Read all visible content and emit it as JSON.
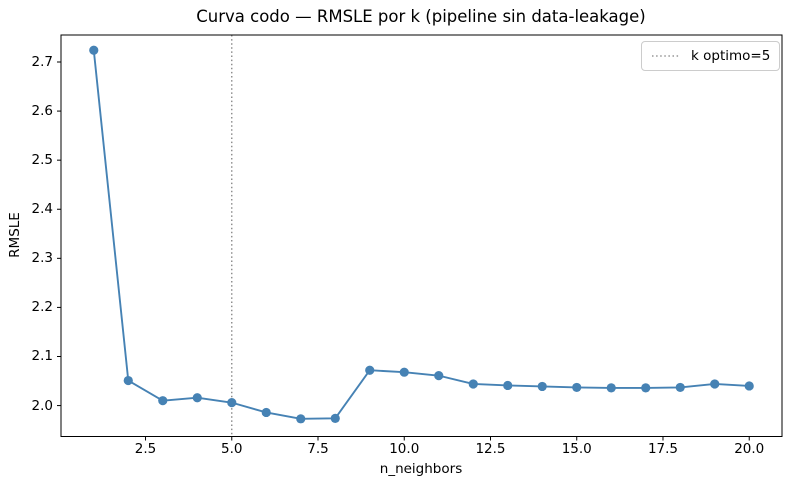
{
  "figure": {
    "background": "#ffffff"
  },
  "chart_data": {
    "type": "line",
    "title": "Curva codo — RMSLE por k (pipeline sin data-leakage)",
    "xlabel": "n_neighbors",
    "ylabel": "RMSLE",
    "x": [
      1,
      2,
      3,
      4,
      5,
      6,
      7,
      8,
      9,
      10,
      11,
      12,
      13,
      14,
      15,
      16,
      17,
      18,
      19,
      20
    ],
    "series": [
      {
        "name": "RMSLE",
        "color": "#4682b4",
        "marker": "o",
        "values": [
          2.724,
          2.051,
          2.01,
          2.016,
          2.006,
          1.986,
          1.973,
          1.974,
          2.072,
          2.068,
          2.061,
          2.044,
          2.041,
          2.039,
          2.037,
          2.036,
          2.036,
          2.037,
          2.044,
          2.04
        ]
      }
    ],
    "annotations": {
      "vline": {
        "x": 5,
        "color": "#808080",
        "style": "dotted",
        "label": "k optimo=5"
      }
    },
    "legend": {
      "position": "upper right",
      "entries": [
        {
          "label": "k optimo=5",
          "color": "#808080",
          "style": "dotted"
        }
      ]
    },
    "xlim": [
      0.05,
      20.95
    ],
    "ylim": [
      1.937,
      2.755
    ],
    "xticks": {
      "values": [
        2.5,
        5.0,
        7.5,
        10.0,
        12.5,
        15.0,
        17.5,
        20.0
      ],
      "labels": [
        "2.5",
        "5.0",
        "7.5",
        "10.0",
        "12.5",
        "15.0",
        "17.5",
        "20.0"
      ]
    },
    "yticks": {
      "values": [
        2.0,
        2.1,
        2.2,
        2.3,
        2.4,
        2.5,
        2.6,
        2.7
      ],
      "labels": [
        "2.0",
        "2.1",
        "2.2",
        "2.3",
        "2.4",
        "2.5",
        "2.6",
        "2.7"
      ]
    },
    "grid": false
  }
}
